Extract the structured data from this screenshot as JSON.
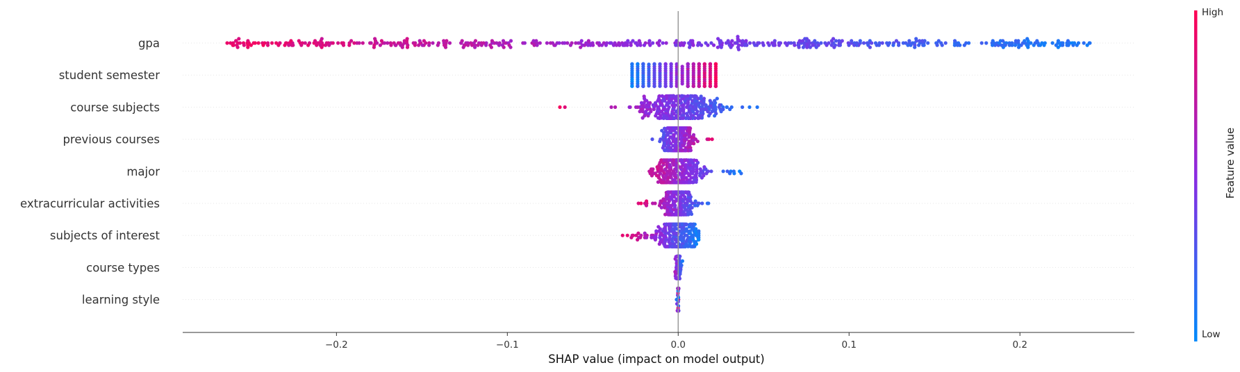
{
  "chart_data": {
    "type": "scatter",
    "subtype": "shap-beeswarm",
    "xlabel": "SHAP value (impact on model output)",
    "xlim": [
      -0.29,
      0.267
    ],
    "xticks": [
      -0.2,
      -0.1,
      0.0,
      0.1,
      0.2
    ],
    "xtick_labels": [
      "−0.2",
      "−0.1",
      "0.0",
      "0.1",
      "0.2"
    ],
    "grid": false,
    "features": [
      {
        "name": "gpa",
        "min": -0.265,
        "max": 0.243,
        "low_side": "right",
        "density": "wide"
      },
      {
        "name": "student semester",
        "min": -0.027,
        "max": 0.022,
        "low_side": "left",
        "density": "columns"
      },
      {
        "name": "course subjects",
        "min": -0.072,
        "max": 0.048,
        "low_side": "right",
        "density": "center"
      },
      {
        "name": "previous courses",
        "min": -0.023,
        "max": 0.022,
        "low_side": "left",
        "density": "center"
      },
      {
        "name": "major",
        "min": -0.026,
        "max": 0.037,
        "low_side": "right",
        "density": "center"
      },
      {
        "name": "extracurricular activities",
        "min": -0.024,
        "max": 0.02,
        "low_side": "right",
        "density": "center"
      },
      {
        "name": "subjects of interest",
        "min": -0.033,
        "max": 0.012,
        "low_side": "right",
        "density": "center"
      },
      {
        "name": "course types",
        "min": -0.005,
        "max": 0.003,
        "low_side": "right",
        "density": "narrow"
      },
      {
        "name": "learning style",
        "min": -0.001,
        "max": 0.001,
        "low_side": "none",
        "density": "narrow"
      }
    ],
    "colorbar": {
      "title": "Feature value",
      "high_label": "High",
      "low_label": "Low",
      "high_color": "#ff0052",
      "low_color": "#008bfb",
      "mid_color": "#8a2be2"
    },
    "point_color_low": "#008bfb",
    "point_color_high": "#ff0052"
  }
}
